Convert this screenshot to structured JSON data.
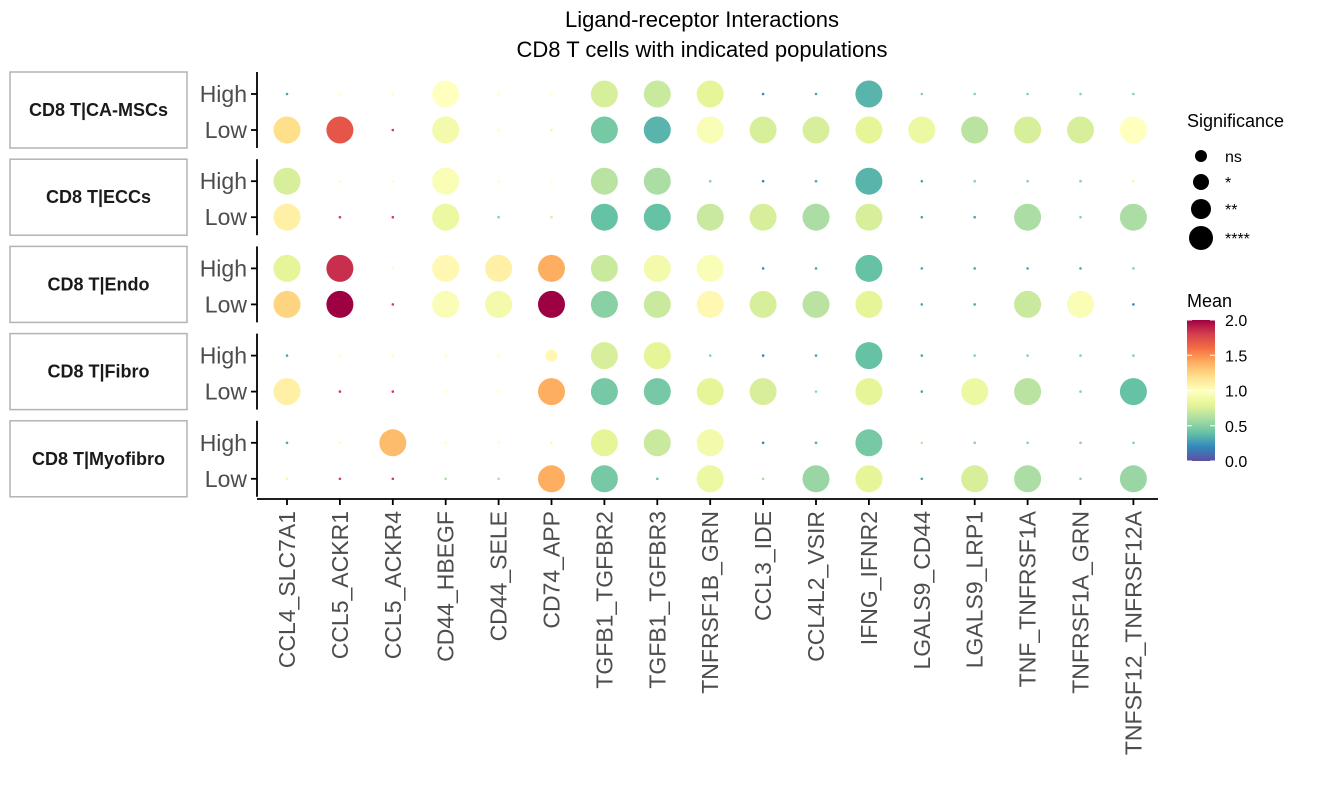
{
  "chart_data": {
    "type": "scatter",
    "title": "Ligand-receptor Interactions",
    "subtitle": "CD8 T cells with indicated populations",
    "x_categories": [
      "CCL4_SLC7A1",
      "CCL5_ACKR1",
      "CCL5_ACKR4",
      "CD44_HBEGF",
      "CD44_SELE",
      "CD74_APP",
      "TGFB1_TGFBR2",
      "TGFB1_TGFBR3",
      "TNFRSF1B_GRN",
      "CCL3_IDE",
      "CCL4L2_VSIR",
      "IFNG_IFNR2",
      "LGALS9_CD44",
      "LGALS9_LRP1",
      "TNF_TNFRSF1A",
      "TNFRSF1A_GRN",
      "TNFSF12_TNFRSF12A"
    ],
    "row_levels": [
      "High",
      "Low"
    ],
    "facets": [
      {
        "label": "CD8 T|CA-MSCs",
        "rows": {
          "High": {
            "mean": [
              0.3,
              1.0,
              1.0,
              1.0,
              1.0,
              1.0,
              0.75,
              0.7,
              0.8,
              0.2,
              0.3,
              0.35,
              0.5,
              0.5,
              0.5,
              0.5,
              0.5
            ],
            "significance": [
              "ns",
              "ns",
              "ns",
              "****",
              "ns",
              "ns",
              "****",
              "****",
              "****",
              "ns",
              "ns",
              "****",
              "ns",
              "ns",
              "ns",
              "ns",
              "ns"
            ]
          },
          "Low": {
            "mean": [
              1.2,
              1.7,
              1.8,
              0.9,
              1.0,
              1.1,
              0.45,
              0.35,
              0.95,
              0.75,
              0.75,
              0.8,
              0.85,
              0.65,
              0.75,
              0.75,
              1.0
            ],
            "significance": [
              "****",
              "****",
              "ns",
              "****",
              "ns",
              "ns",
              "****",
              "****",
              "****",
              "****",
              "****",
              "****",
              "****",
              "****",
              "****",
              "****",
              "****"
            ]
          }
        }
      },
      {
        "label": "CD8 T|ECCs",
        "rows": {
          "High": {
            "mean": [
              0.75,
              1.0,
              1.0,
              0.95,
              1.0,
              1.0,
              0.65,
              0.6,
              0.5,
              0.2,
              0.3,
              0.35,
              0.3,
              0.5,
              0.5,
              0.5,
              0.9
            ],
            "significance": [
              "****",
              "ns",
              "ns",
              "****",
              "ns",
              "ns",
              "****",
              "****",
              "ns",
              "ns",
              "ns",
              "****",
              "ns",
              "ns",
              "ns",
              "ns",
              "ns"
            ]
          },
          "Low": {
            "mean": [
              1.1,
              1.8,
              1.8,
              0.85,
              0.5,
              1.2,
              0.4,
              0.4,
              0.7,
              0.75,
              0.6,
              0.75,
              0.3,
              0.3,
              0.6,
              0.5,
              0.6
            ],
            "significance": [
              "****",
              "ns",
              "ns",
              "****",
              "ns",
              "ns",
              "****",
              "****",
              "****",
              "****",
              "****",
              "****",
              "ns",
              "ns",
              "****",
              "ns",
              "****"
            ]
          }
        }
      },
      {
        "label": "CD8 T|Endo",
        "rows": {
          "High": {
            "mean": [
              0.8,
              1.85,
              1.0,
              1.05,
              1.1,
              1.4,
              0.7,
              0.9,
              0.95,
              0.2,
              0.3,
              0.4,
              0.3,
              0.3,
              0.3,
              0.3,
              0.5
            ],
            "significance": [
              "****",
              "****",
              "ns",
              "****",
              "****",
              "****",
              "****",
              "****",
              "****",
              "ns",
              "ns",
              "****",
              "ns",
              "ns",
              "ns",
              "ns",
              "ns"
            ]
          },
          "Low": {
            "mean": [
              1.25,
              2.0,
              1.8,
              0.95,
              0.9,
              2.0,
              0.5,
              0.7,
              1.05,
              0.75,
              0.65,
              0.8,
              0.3,
              0.3,
              0.7,
              0.95,
              0.2
            ],
            "significance": [
              "****",
              "****",
              "ns",
              "****",
              "****",
              "****",
              "****",
              "****",
              "****",
              "****",
              "****",
              "****",
              "ns",
              "ns",
              "****",
              "****",
              "ns"
            ]
          }
        }
      },
      {
        "label": "CD8 T|Fibro",
        "rows": {
          "High": {
            "mean": [
              0.3,
              1.0,
              1.0,
              1.0,
              1.0,
              1.05,
              0.75,
              0.8,
              0.5,
              0.2,
              0.3,
              0.4,
              0.3,
              0.5,
              0.5,
              0.5,
              0.5
            ],
            "significance": [
              "ns",
              "ns",
              "ns",
              "ns",
              "ns",
              "*",
              "****",
              "****",
              "ns",
              "ns",
              "ns",
              "****",
              "ns",
              "ns",
              "ns",
              "ns",
              "ns"
            ]
          },
          "Low": {
            "mean": [
              1.1,
              1.8,
              1.8,
              1.0,
              1.0,
              1.4,
              0.45,
              0.45,
              0.8,
              0.75,
              0.55,
              0.8,
              0.3,
              0.85,
              0.65,
              0.5,
              0.4
            ],
            "significance": [
              "****",
              "ns",
              "ns",
              "ns",
              "ns",
              "****",
              "****",
              "****",
              "****",
              "****",
              "ns",
              "****",
              "ns",
              "****",
              "****",
              "ns",
              "****"
            ]
          }
        }
      },
      {
        "label": "CD8 T|Myofibro",
        "rows": {
          "High": {
            "mean": [
              0.3,
              1.0,
              1.35,
              1.0,
              1.0,
              1.05,
              0.8,
              0.7,
              0.9,
              0.2,
              0.3,
              0.45,
              0.7,
              0.5,
              0.5,
              0.5,
              0.5
            ],
            "significance": [
              "ns",
              "ns",
              "****",
              "ns",
              "ns",
              "ns",
              "****",
              "****",
              "****",
              "ns",
              "ns",
              "****",
              "ns",
              "ns",
              "ns",
              "ns",
              "ns"
            ]
          },
          "Low": {
            "mean": [
              1.1,
              1.8,
              1.8,
              0.6,
              0.6,
              1.4,
              0.45,
              0.4,
              0.85,
              0.6,
              0.55,
              0.8,
              0.3,
              0.75,
              0.6,
              0.5,
              0.55
            ],
            "significance": [
              "ns",
              "ns",
              "ns",
              "ns",
              "ns",
              "****",
              "****",
              "ns",
              "****",
              "ns",
              "****",
              "****",
              "ns",
              "****",
              "****",
              "ns",
              "****"
            ]
          }
        }
      }
    ],
    "legend_significance": {
      "title": "Significance",
      "levels": [
        "ns",
        "*",
        "**",
        "****"
      ]
    },
    "legend_mean": {
      "title": "Mean",
      "range": [
        0,
        2
      ],
      "ticks": [
        "0.0",
        "0.5",
        "1.0",
        "1.5",
        "2.0"
      ],
      "palette": "Spectral"
    },
    "grid": false
  }
}
